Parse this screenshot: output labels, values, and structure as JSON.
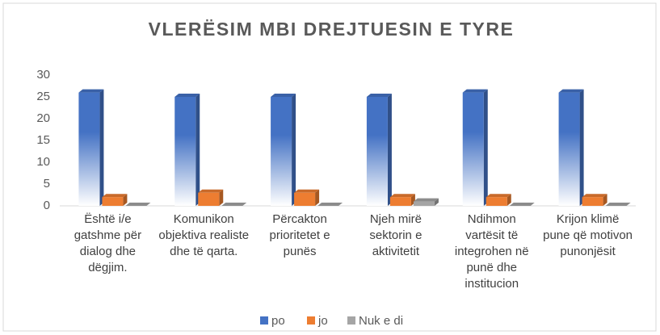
{
  "chart_data": {
    "type": "bar",
    "title": "VLERËSIM MBI DREJTUESIN E TYRE",
    "categories": [
      "Është i/e gatshme për dialog dhe dëgjim.",
      "Komunikon objektiva realiste dhe të qarta.",
      "Përcakton prioritetet e punës",
      "Njeh mirë sektorin e aktivitetit",
      "Ndihmon vartësit të integrohen në punë dhe institucion",
      "Krijon klimë pune që motivon punonjësit"
    ],
    "series": [
      {
        "name": "po",
        "color": "#4472c4",
        "values": [
          26,
          25,
          25,
          25,
          26,
          26
        ]
      },
      {
        "name": "jo",
        "color": "#ed7d31",
        "values": [
          2,
          3,
          3,
          2,
          2,
          2
        ]
      },
      {
        "name": "Nuk e di",
        "color": "#a5a5a5",
        "values": [
          0,
          0,
          0,
          1,
          0,
          0
        ]
      }
    ],
    "ylim": [
      0,
      30
    ],
    "yticks": [
      0,
      5,
      10,
      15,
      20,
      25,
      30
    ],
    "grid": false,
    "legend": "bottom"
  }
}
